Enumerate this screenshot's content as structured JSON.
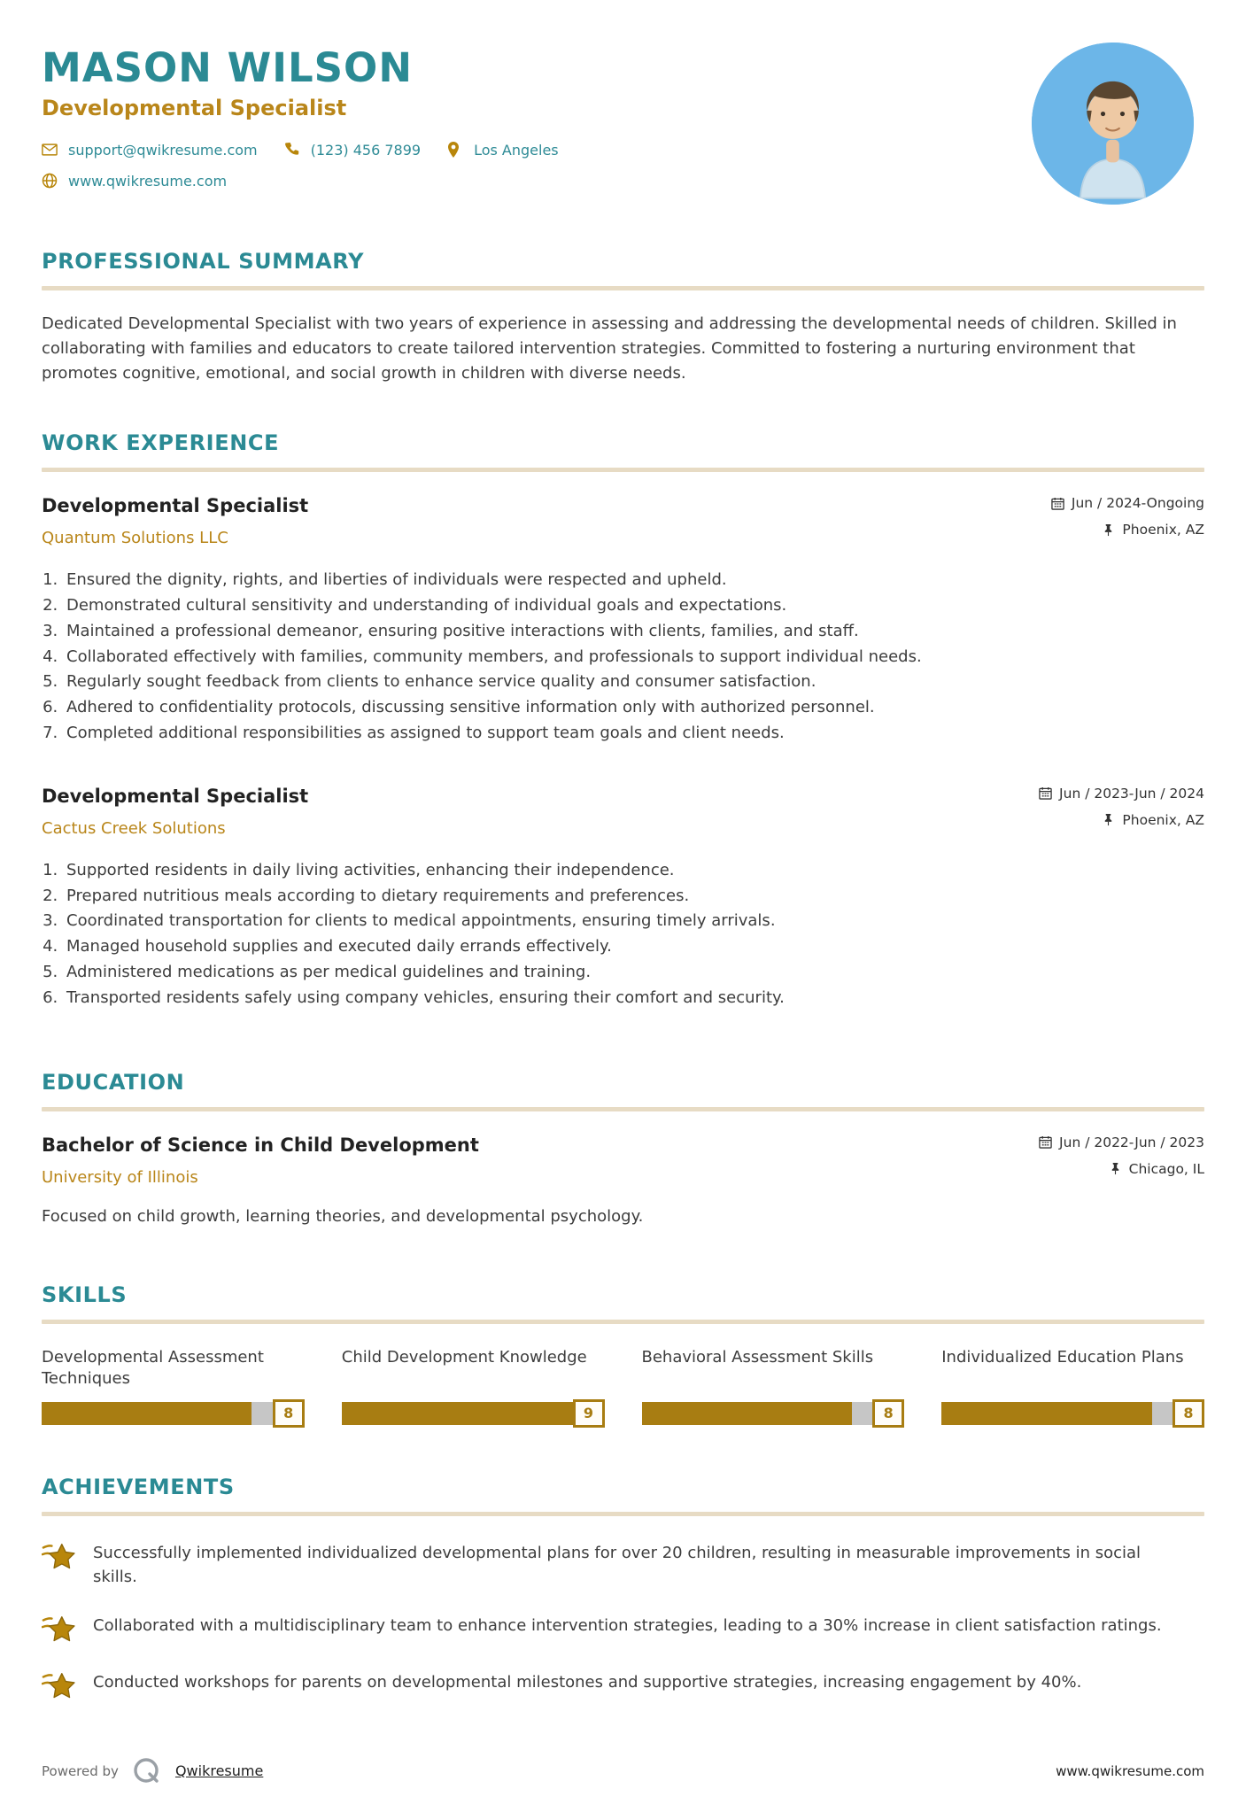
{
  "header": {
    "name": "MASON WILSON",
    "title": "Developmental Specialist",
    "contacts": {
      "email": "support@qwikresume.com",
      "phone": "(123) 456 7899",
      "location": "Los Angeles",
      "website": "www.qwikresume.com"
    }
  },
  "sections": {
    "summary": {
      "heading": "PROFESSIONAL SUMMARY",
      "text": "Dedicated Developmental Specialist with two years of experience in assessing and addressing the developmental needs of children. Skilled in collaborating with families and educators to create tailored intervention strategies. Committed to fostering a nurturing environment that promotes cognitive, emotional, and social growth in children with diverse needs."
    },
    "experience": {
      "heading": "WORK EXPERIENCE",
      "jobs": [
        {
          "title": "Developmental Specialist",
          "company": "Quantum Solutions LLC",
          "date": "Jun / 2024-Ongoing",
          "location": "Phoenix, AZ",
          "duties": [
            "Ensured the dignity, rights, and liberties of individuals were respected and upheld.",
            "Demonstrated cultural sensitivity and understanding of individual goals and expectations.",
            "Maintained a professional demeanor, ensuring positive interactions with clients, families, and staff.",
            "Collaborated effectively with families, community members, and professionals to support individual needs.",
            "Regularly sought feedback from clients to enhance service quality and consumer satisfaction.",
            "Adhered to confidentiality protocols, discussing sensitive information only with authorized personnel.",
            "Completed additional responsibilities as assigned to support team goals and client needs."
          ]
        },
        {
          "title": "Developmental Specialist",
          "company": "Cactus Creek Solutions",
          "date": "Jun / 2023-Jun / 2024",
          "location": "Phoenix, AZ",
          "duties": [
            "Supported residents in daily living activities, enhancing their independence.",
            "Prepared nutritious meals according to dietary requirements and preferences.",
            "Coordinated transportation for clients to medical appointments, ensuring timely arrivals.",
            "Managed household supplies and executed daily errands effectively.",
            "Administered medications as per medical guidelines and training.",
            "Transported residents safely using company vehicles, ensuring their comfort and security."
          ]
        }
      ]
    },
    "education": {
      "heading": "EDUCATION",
      "degree": "Bachelor of Science in Child Development",
      "school": "University of Illinois",
      "date": "Jun / 2022-Jun / 2023",
      "location": "Chicago, IL",
      "description": "Focused on child growth, learning theories, and developmental psychology."
    },
    "skills": {
      "heading": "SKILLS",
      "items": [
        {
          "label": "Developmental Assessment Techniques",
          "score": 8,
          "max": 10
        },
        {
          "label": "Child Development Knowledge",
          "score": 9,
          "max": 10
        },
        {
          "label": "Behavioral Assessment Skills",
          "score": 8,
          "max": 10
        },
        {
          "label": "Individualized Education Plans",
          "score": 8,
          "max": 10
        }
      ]
    },
    "achievements": {
      "heading": "ACHIEVEMENTS",
      "items": [
        "Successfully implemented individualized developmental plans for over 20 children, resulting in measurable improvements in social skills.",
        "Collaborated with a multidisciplinary team to enhance intervention strategies, leading to a 30% increase in client satisfaction ratings.",
        "Conducted workshops for parents on developmental milestones and supportive strategies, increasing engagement by 40%."
      ]
    }
  },
  "footer": {
    "powered_by": "Powered by",
    "brand": "Qwikresume",
    "website": "www.qwikresume.com"
  },
  "colors": {
    "accent_teal": "#2b8a94",
    "accent_gold": "#b9861a",
    "bar_fill": "#a87d12",
    "bar_track": "#c6c6c6",
    "divider": "#e7dbc4",
    "avatar_bg": "#6cb6e8"
  }
}
